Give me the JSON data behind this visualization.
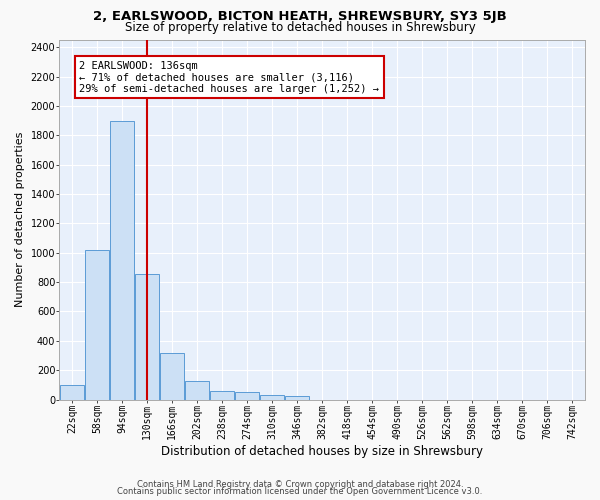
{
  "title1": "2, EARLSWOOD, BICTON HEATH, SHREWSBURY, SY3 5JB",
  "title2": "Size of property relative to detached houses in Shrewsbury",
  "xlabel": "Distribution of detached houses by size in Shrewsbury",
  "ylabel": "Number of detached properties",
  "bar_values": [
    100,
    1020,
    1900,
    855,
    320,
    125,
    60,
    50,
    30,
    25,
    0,
    0,
    0,
    0,
    0,
    0,
    0,
    0,
    0,
    0,
    0
  ],
  "bin_labels": [
    "22sqm",
    "58sqm",
    "94sqm",
    "130sqm",
    "166sqm",
    "202sqm",
    "238sqm",
    "274sqm",
    "310sqm",
    "346sqm",
    "382sqm",
    "418sqm",
    "454sqm",
    "490sqm",
    "526sqm",
    "562sqm",
    "598sqm",
    "634sqm",
    "670sqm",
    "706sqm",
    "742sqm"
  ],
  "bar_color": "#cce0f5",
  "bar_edge_color": "#5b9bd5",
  "highlight_bin_index": 3,
  "highlight_color": "#cc0000",
  "annotation_line1": "2 EARLSWOOD: 136sqm",
  "annotation_line2": "← 71% of detached houses are smaller (3,116)",
  "annotation_line3": "29% of semi-detached houses are larger (1,252) →",
  "annotation_box_color": "#ffffff",
  "annotation_box_edge": "#cc0000",
  "ylim": [
    0,
    2450
  ],
  "yticks": [
    0,
    200,
    400,
    600,
    800,
    1000,
    1200,
    1400,
    1600,
    1800,
    2000,
    2200,
    2400
  ],
  "bg_color": "#e8f0fb",
  "grid_color": "#ffffff",
  "footer1": "Contains HM Land Registry data © Crown copyright and database right 2024.",
  "footer2": "Contains public sector information licensed under the Open Government Licence v3.0.",
  "title1_fontsize": 9.5,
  "title2_fontsize": 8.5,
  "tick_fontsize": 7,
  "ylabel_fontsize": 8,
  "xlabel_fontsize": 8.5,
  "annotation_fontsize": 7.5,
  "footer_fontsize": 6
}
